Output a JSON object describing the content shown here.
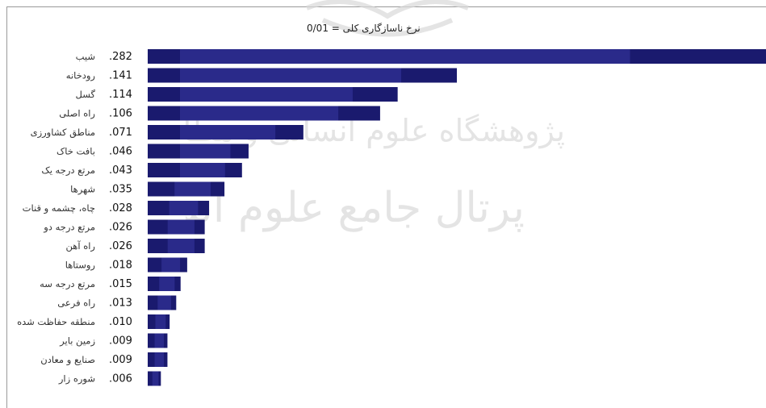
{
  "chart_data": {
    "type": "bar",
    "orientation": "horizontal",
    "title": "نرخ ناسازگاری کلی = 0/01",
    "categories": [
      "شیب",
      "رودخانه",
      "گسل",
      "راه اصلی",
      "مناطق کشاورزی",
      "بافت خاک",
      "مرتع درجه یک",
      "شهرها",
      "چاه، چشمه و قنات",
      "مرتع درجه دو",
      "راه آهن",
      "روستاها",
      "مرتع درجه سه",
      "راه فرعی",
      "منطقه حفاظت شده",
      "زمین بایر",
      "صنایع و معادن",
      "شوره زار"
    ],
    "value_labels": [
      ".282",
      ".141",
      ".114",
      ".106",
      ".071",
      ".046",
      ".043",
      ".035",
      ".028",
      ".026",
      ".026",
      ".018",
      ".015",
      ".013",
      ".010",
      ".009",
      ".009",
      ".006"
    ],
    "values": [
      0.282,
      0.141,
      0.114,
      0.106,
      0.071,
      0.046,
      0.043,
      0.035,
      0.028,
      0.026,
      0.026,
      0.018,
      0.015,
      0.013,
      0.01,
      0.009,
      0.009,
      0.006
    ],
    "bar_color": "#1a1a6e",
    "bar_accent_color": "#2a2a8a",
    "grid": false
  },
  "watermark": {
    "line1": "پژوهشگاه علوم انسانی و مطالعات فرهنگی",
    "line2": "پرتال جامع علوم انسانی"
  }
}
